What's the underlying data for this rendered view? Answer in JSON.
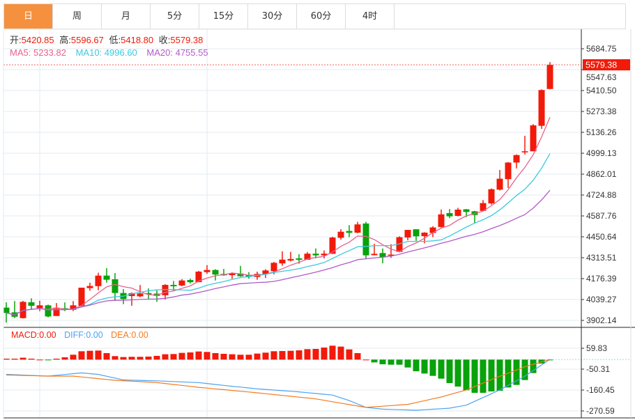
{
  "tabs": [
    "日",
    "周",
    "月",
    "5分",
    "15分",
    "30分",
    "60分",
    "4时"
  ],
  "active_tab": 0,
  "info": {
    "open_label": "开:",
    "open": "5420.85",
    "high_label": "高:",
    "high": "5596.67",
    "low_label": "低:",
    "low": "5418.80",
    "close_label": "收:",
    "close": "5579.38",
    "ma5_label": "MA5: ",
    "ma5": "5233.82",
    "ma10_label": "MA10: ",
    "ma10": "4996.60",
    "ma20_label": "MA20: ",
    "ma20": "4755.55"
  },
  "macd_info": {
    "macd": "MACD:0.00",
    "diff": "DIFF:0.00",
    "dea": "DEA:0.00"
  },
  "colors": {
    "up": "#f21a0a",
    "down": "#08a20a",
    "ma5": "#e8618c",
    "ma10": "#3cc8e0",
    "ma20": "#b459c8",
    "diff": "#4ba3f0",
    "dea": "#f47a20",
    "active_tab": "#f5913e"
  },
  "chart_data": [
    {
      "type": "candlestick",
      "ylim": [
        3902.14,
        5684.75
      ],
      "yticks": [
        "5684.75",
        "5547.63",
        "5410.50",
        "5273.38",
        "5136.26",
        "4999.13",
        "4862.01",
        "4724.88",
        "4587.76",
        "4450.64",
        "4313.51",
        "4176.39",
        "4039.27",
        "3902.14"
      ],
      "last_price_label": "5579.38",
      "last_price": 5579.38,
      "grid": true,
      "moving_averages": [
        5,
        10,
        20
      ],
      "ohlc": [
        [
          3986,
          4021,
          3888,
          3951
        ],
        [
          3955,
          4029,
          3917,
          3926
        ],
        [
          3917,
          4030,
          3915,
          4024
        ],
        [
          4021,
          4047,
          3971,
          3998
        ],
        [
          3983,
          4031,
          3963,
          4001
        ],
        [
          4001,
          4006,
          3922,
          3928
        ],
        [
          3931,
          4016,
          3931,
          3979
        ],
        [
          3982,
          4020,
          3963,
          3972
        ],
        [
          3972,
          4029,
          3963,
          4001
        ],
        [
          3997,
          4117,
          3993,
          4117
        ],
        [
          4114,
          4150,
          4097,
          4128
        ],
        [
          4127,
          4215,
          4100,
          4196
        ],
        [
          4196,
          4245,
          4150,
          4169
        ],
        [
          4172,
          4213,
          4032,
          4082
        ],
        [
          4082,
          4108,
          4009,
          4042
        ],
        [
          4062,
          4085,
          3998,
          4081
        ],
        [
          4060,
          4134,
          4054,
          4079
        ],
        [
          4081,
          4112,
          4039,
          4073
        ],
        [
          4078,
          4100,
          4024,
          4063
        ],
        [
          4067,
          4140,
          4039,
          4135
        ],
        [
          4135,
          4161,
          4097,
          4126
        ],
        [
          4131,
          4173,
          4126,
          4164
        ],
        [
          4167,
          4176,
          4144,
          4153
        ],
        [
          4153,
          4227,
          4153,
          4222
        ],
        [
          4219,
          4265,
          4207,
          4233
        ],
        [
          4233,
          4238,
          4164,
          4203
        ],
        [
          4207,
          4240,
          4195,
          4198
        ],
        [
          4199,
          4217,
          4176,
          4210
        ],
        [
          4210,
          4260,
          4189,
          4192
        ],
        [
          4199,
          4219,
          4176,
          4189
        ],
        [
          4187,
          4222,
          4169,
          4207
        ],
        [
          4207,
          4238,
          4181,
          4230
        ],
        [
          4225,
          4286,
          4204,
          4280
        ],
        [
          4276,
          4355,
          4260,
          4301
        ],
        [
          4295,
          4352,
          4289,
          4305
        ],
        [
          4309,
          4337,
          4274,
          4300
        ],
        [
          4300,
          4351,
          4300,
          4340
        ],
        [
          4340,
          4374,
          4309,
          4329
        ],
        [
          4329,
          4361,
          4309,
          4340
        ],
        [
          4339,
          4451,
          4339,
          4446
        ],
        [
          4444,
          4501,
          4432,
          4484
        ],
        [
          4489,
          4527,
          4448,
          4477
        ],
        [
          4478,
          4549,
          4474,
          4532
        ],
        [
          4538,
          4549,
          4306,
          4329
        ],
        [
          4330,
          4405,
          4329,
          4339
        ],
        [
          4344,
          4374,
          4277,
          4318
        ],
        [
          4328,
          4402,
          4313,
          4334
        ],
        [
          4352,
          4454,
          4349,
          4448
        ],
        [
          4446,
          4496,
          4428,
          4496
        ],
        [
          4500,
          4500,
          4424,
          4454
        ],
        [
          4455,
          4481,
          4408,
          4478
        ],
        [
          4476,
          4520,
          4448,
          4512
        ],
        [
          4515,
          4630,
          4512,
          4598
        ],
        [
          4606,
          4633,
          4573,
          4585
        ],
        [
          4588,
          4641,
          4585,
          4629
        ],
        [
          4631,
          4633,
          4580,
          4614
        ],
        [
          4618,
          4621,
          4542,
          4594
        ],
        [
          4621,
          4692,
          4619,
          4672
        ],
        [
          4670,
          4768,
          4662,
          4763
        ],
        [
          4760,
          4889,
          4755,
          4832
        ],
        [
          4829,
          4941,
          4771,
          4938
        ],
        [
          4938,
          4991,
          4900,
          4987
        ],
        [
          5005,
          5113,
          4991,
          5012
        ],
        [
          5012,
          5190,
          5012,
          5182
        ],
        [
          5179,
          5418,
          5159,
          5414
        ],
        [
          5420.85,
          5596.67,
          5418.8,
          5579.38
        ]
      ]
    },
    {
      "type": "bar+line",
      "ylim": [
        -270.59,
        59.83
      ],
      "yticks": [
        "59.83",
        "-50.31",
        "-160.45",
        "-270.59"
      ],
      "macd_histogram": [
        5,
        5,
        10,
        5,
        0,
        -3.7,
        4.9,
        12.2,
        25.7,
        44,
        46.5,
        47.7,
        34.3,
        18.4,
        13.5,
        14.7,
        14.7,
        15.9,
        19.6,
        28.2,
        29.4,
        35.5,
        37.9,
        42.8,
        40.4,
        34.3,
        30.6,
        28.2,
        25.7,
        25.7,
        31.8,
        36.7,
        44.1,
        45.3,
        46.5,
        48.9,
        55.1,
        56.3,
        63.6,
        73.4,
        68.5,
        53.8,
        34.3,
        0,
        -14.7,
        -24.5,
        -26.9,
        -26.9,
        -41.6,
        -61.2,
        -73.4,
        -85.7,
        -100.4,
        -123.6,
        -142,
        -161.5,
        -175,
        -175,
        -167.8,
        -164.1,
        -146.9,
        -133.4,
        -107.7,
        -71,
        -20.8,
        -2.4
      ],
      "diff_points": [
        [
          0,
          -78
        ],
        [
          5,
          -87
        ],
        [
          9,
          -70
        ],
        [
          11,
          -78
        ],
        [
          14,
          -107
        ],
        [
          18,
          -112
        ],
        [
          23,
          -121
        ],
        [
          26,
          -136
        ],
        [
          30,
          -154
        ],
        [
          35,
          -170
        ],
        [
          39,
          -187
        ],
        [
          41,
          -216
        ],
        [
          43,
          -252
        ],
        [
          45,
          -261
        ],
        [
          49,
          -267
        ],
        [
          53,
          -256
        ],
        [
          55,
          -240
        ],
        [
          59,
          -160
        ],
        [
          62,
          -87
        ],
        [
          65,
          1
        ]
      ],
      "dea_points": [
        [
          0,
          -81
        ],
        [
          5,
          -87
        ],
        [
          8,
          -87
        ],
        [
          13,
          -109
        ],
        [
          18,
          -121
        ],
        [
          23,
          -146
        ],
        [
          30,
          -175
        ],
        [
          37,
          -207
        ],
        [
          43,
          -252
        ],
        [
          48,
          -236
        ],
        [
          52,
          -197
        ],
        [
          55,
          -160
        ],
        [
          58,
          -105
        ],
        [
          62,
          -38
        ],
        [
          65,
          1
        ]
      ]
    }
  ]
}
